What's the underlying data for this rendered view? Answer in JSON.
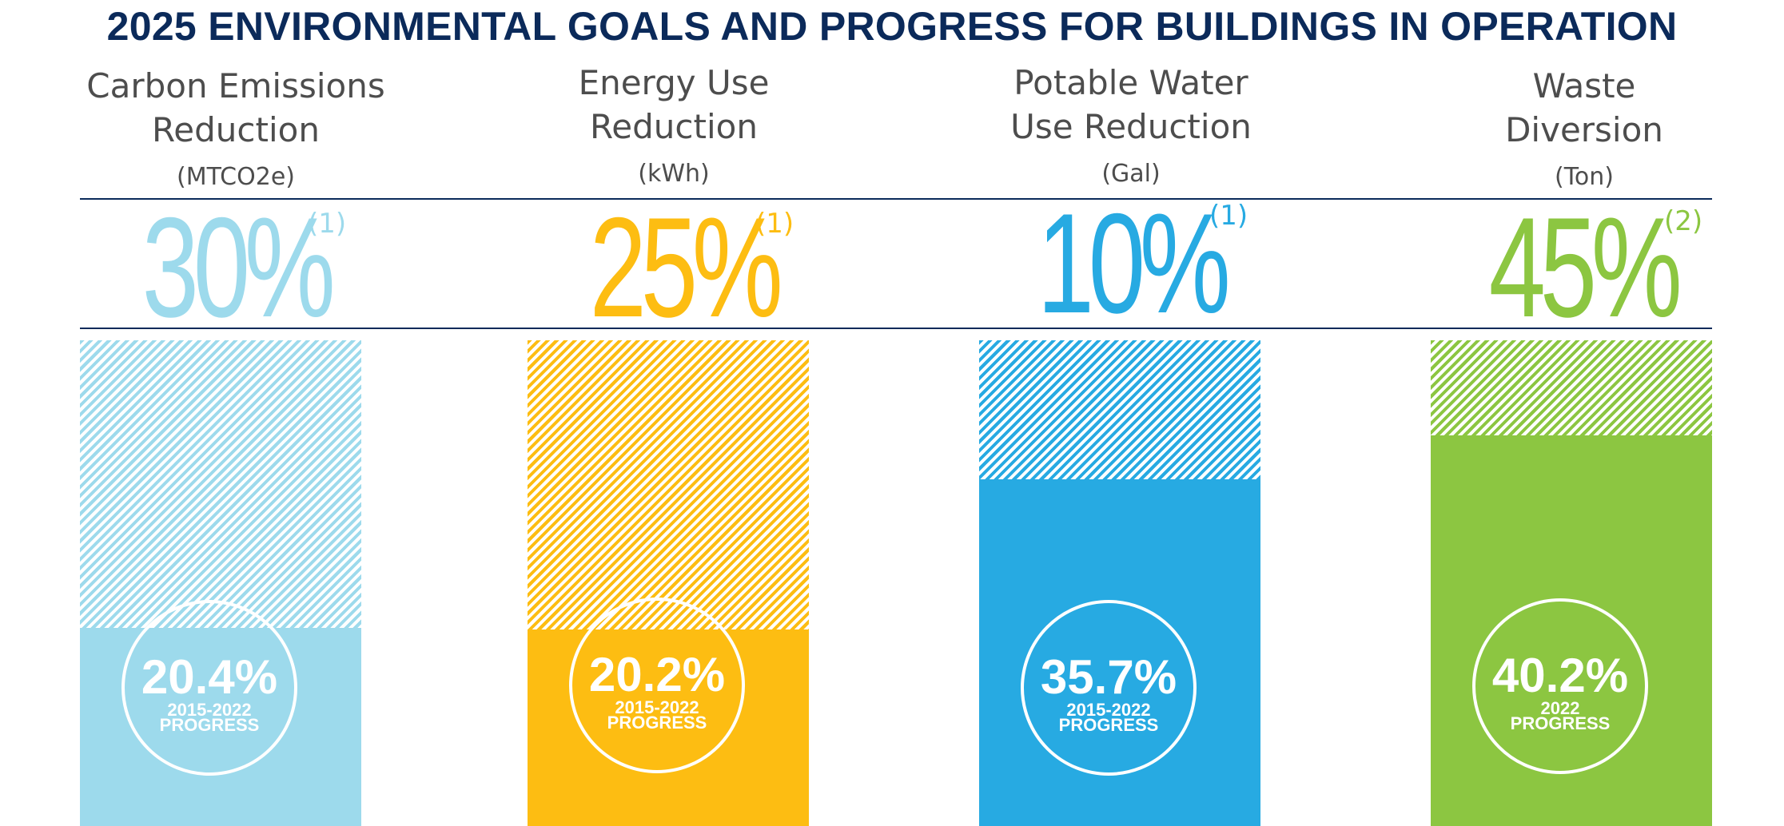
{
  "chart_data": {
    "type": "bar",
    "title": "2025 ENVIRONMENTAL GOALS AND PROGRESS FOR BUILDINGS IN OPERATION",
    "categories": [
      "Carbon Emissions Reduction",
      "Energy Use Reduction",
      "Potable Water Use Reduction",
      "Waste Diversion"
    ],
    "series": [
      {
        "name": "2025 Goal",
        "values": [
          30,
          25,
          10,
          45
        ]
      },
      {
        "name": "Progress",
        "values": [
          20.4,
          20.2,
          35.7,
          40.2
        ]
      }
    ],
    "ylim": [
      0,
      50
    ],
    "ylabel": "%",
    "columns": [
      {
        "metric": "Carbon Emissions\nReduction",
        "unit": "(MTCO2e)",
        "goal_label": "30%",
        "goal_note": "(1)",
        "goal": 30,
        "progress": 20.4,
        "progress_label": "20.4%",
        "period": "2015-2022",
        "caption": "PROGRESS",
        "color": "#9ddaec"
      },
      {
        "metric": "Energy Use\nReduction",
        "unit": "(kWh)",
        "goal_label": "25%",
        "goal_note": "(1)",
        "goal": 25,
        "progress": 20.2,
        "progress_label": "20.2%",
        "period": "2015-2022",
        "caption": "PROGRESS",
        "color": "#fdbd12"
      },
      {
        "metric": "Potable Water\nUse Reduction",
        "unit": "(Gal)",
        "goal_label": "10%",
        "goal_note": "(1)",
        "goal": 10,
        "progress": 35.7,
        "progress_label": "35.7%",
        "period": "2015-2022",
        "caption": "PROGRESS",
        "color": "#27aae2"
      },
      {
        "metric": "Waste\nDiversion",
        "unit": "(Ton)",
        "goal_label": "45%",
        "goal_note": "(2)",
        "goal": 45,
        "progress": 40.2,
        "progress_label": "40.2%",
        "period": "2022",
        "caption": "PROGRESS",
        "color": "#8cc641"
      }
    ]
  }
}
